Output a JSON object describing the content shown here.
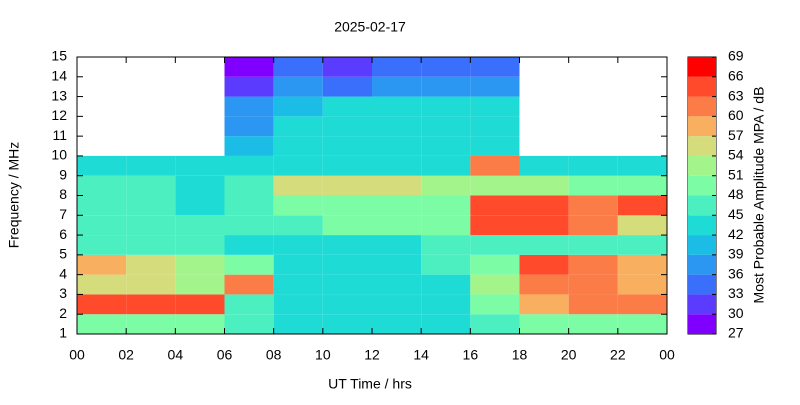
{
  "chart_data": {
    "type": "heatmap",
    "title": "2025-02-17",
    "xlabel": "UT Time / hrs",
    "ylabel": "Frequency / MHz",
    "colorbar_label": "Most Probable Amplitude MPA / dB",
    "xbins": [
      0,
      2,
      4,
      6,
      8,
      10,
      12,
      14,
      16,
      18,
      20,
      22,
      24
    ],
    "ybins": [
      1,
      2,
      3,
      4,
      5,
      6,
      7,
      8,
      9,
      10,
      11,
      12,
      13,
      14,
      15
    ],
    "values": [
      [
        48,
        48,
        48,
        45,
        42,
        42,
        42,
        42,
        45,
        48,
        48,
        48
      ],
      [
        63,
        63,
        63,
        45,
        42,
        42,
        42,
        42,
        48,
        57,
        60,
        60
      ],
      [
        54,
        54,
        51,
        60,
        42,
        42,
        42,
        42,
        51,
        60,
        60,
        57
      ],
      [
        57,
        54,
        51,
        48,
        42,
        42,
        42,
        45,
        48,
        63,
        60,
        57
      ],
      [
        45,
        45,
        45,
        42,
        42,
        42,
        42,
        45,
        45,
        45,
        45,
        45
      ],
      [
        45,
        45,
        45,
        45,
        45,
        48,
        48,
        48,
        63,
        63,
        60,
        54
      ],
      [
        45,
        45,
        42,
        45,
        48,
        48,
        48,
        48,
        63,
        63,
        60,
        63
      ],
      [
        45,
        45,
        42,
        45,
        54,
        54,
        54,
        51,
        51,
        51,
        48,
        48
      ],
      [
        42,
        42,
        42,
        42,
        42,
        42,
        42,
        42,
        60,
        42,
        42,
        42
      ],
      [
        null,
        null,
        null,
        39,
        42,
        42,
        42,
        42,
        42,
        null,
        null,
        null
      ],
      [
        null,
        null,
        null,
        36,
        42,
        42,
        42,
        42,
        42,
        null,
        null,
        null
      ],
      [
        null,
        null,
        null,
        36,
        39,
        42,
        42,
        42,
        42,
        null,
        null,
        null
      ],
      [
        null,
        null,
        null,
        30,
        36,
        33,
        36,
        36,
        36,
        null,
        null,
        null
      ],
      [
        null,
        null,
        null,
        27,
        33,
        30,
        33,
        33,
        33,
        null,
        null,
        null
      ]
    ],
    "xlim": [
      0,
      24
    ],
    "xticks": [
      {
        "value": 0,
        "label": "00"
      },
      {
        "value": 2,
        "label": "02"
      },
      {
        "value": 4,
        "label": "04"
      },
      {
        "value": 6,
        "label": "06"
      },
      {
        "value": 8,
        "label": "08"
      },
      10,
      12,
      14,
      16,
      18,
      20,
      22,
      {
        "value": 24,
        "label": "00"
      }
    ],
    "ylim": [
      1,
      15
    ],
    "yticks": [
      1,
      2,
      3,
      4,
      5,
      6,
      7,
      8,
      9,
      10,
      11,
      12,
      13,
      14,
      15
    ],
    "zlim": [
      27,
      69
    ],
    "zticks": [
      27,
      30,
      33,
      36,
      39,
      42,
      45,
      48,
      51,
      54,
      57,
      60,
      63,
      66,
      69
    ],
    "colors": [
      "#7f00ff",
      "#5b3cff",
      "#3a6ffb",
      "#2c97f2",
      "#1bbce6",
      "#1edbd6",
      "#4cf0c0",
      "#7cfca4",
      "#a4f48c",
      "#d4dc7c",
      "#f8b060",
      "#fc7c48",
      "#ff4a2c",
      "#ff0000"
    ]
  }
}
